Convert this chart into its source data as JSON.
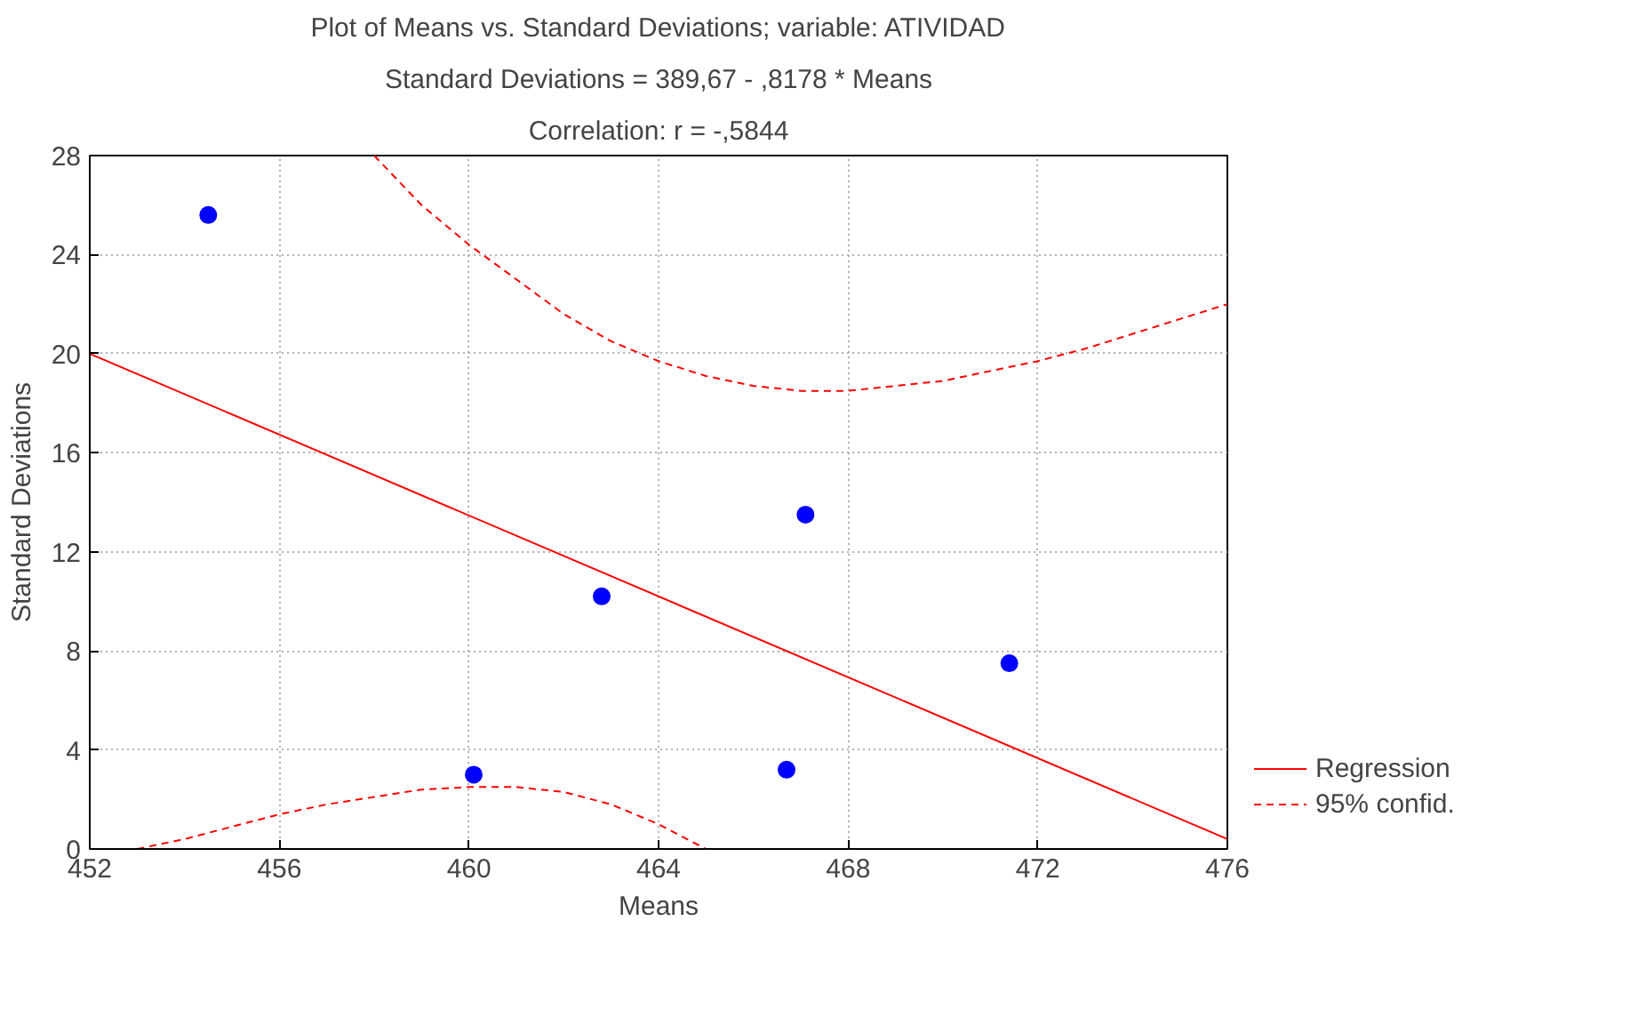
{
  "chart_data": {
    "type": "scatter",
    "title": "Plot of Means vs. Standard Deviations; variable: ATIVIDAD",
    "subtitle": "Standard Deviations = 389,67 - ,8178 * Means",
    "annotations": [
      "Correlation: r = -,5844"
    ],
    "xlabel": "Means",
    "ylabel": "Standard Deviations",
    "xlim": [
      452,
      476
    ],
    "ylim": [
      0,
      28
    ],
    "xticks": [
      452,
      456,
      460,
      464,
      468,
      472,
      476
    ],
    "yticks": [
      0,
      4,
      8,
      12,
      16,
      20,
      24,
      28
    ],
    "grid": true,
    "legend": "bottom right",
    "series": [
      {
        "color": "#0000ff",
        "marker": "circle",
        "x": [
          454.5,
          460.1,
          462.8,
          466.7,
          467.1,
          471.4
        ],
        "values": [
          25.6,
          3.0,
          10.2,
          3.2,
          13.5,
          7.5
        ]
      },
      {
        "type": "line",
        "name": "Regression",
        "color": "#ff0000",
        "line_style": "solid",
        "x": [
          452,
          476
        ],
        "values": [
          20.0,
          0.4
        ]
      },
      {
        "type": "line",
        "name": "95% confid.",
        "color": "#ff0000",
        "line_style": "dashed",
        "x": [
          458,
          459,
          460,
          461,
          462,
          463,
          464,
          465,
          466,
          467,
          468,
          469,
          470,
          471,
          472,
          473,
          474,
          475,
          476
        ],
        "values": [
          28,
          26.0,
          24.4,
          23.0,
          21.6,
          20.5,
          19.7,
          19.1,
          18.7,
          18.5,
          18.5,
          18.7,
          18.9,
          19.3,
          19.7,
          20.2,
          20.8,
          21.4,
          22.0
        ]
      },
      {
        "type": "line",
        "color": "#ff0000",
        "line_style": "dashed",
        "x": [
          453,
          454,
          455,
          456,
          457,
          458,
          459,
          460,
          461,
          462,
          463,
          464,
          465
        ],
        "values": [
          0,
          0.4,
          0.9,
          1.4,
          1.8,
          2.1,
          2.4,
          2.5,
          2.5,
          2.3,
          1.8,
          1.0,
          0
        ]
      }
    ]
  }
}
